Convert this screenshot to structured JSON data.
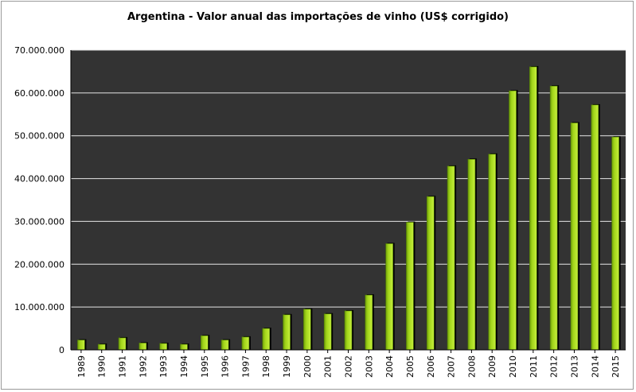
{
  "chart_data": {
    "type": "bar",
    "title": "Argentina - Valor anual das importações de vinho (US$ corrigido)",
    "xlabel": "",
    "ylabel": "",
    "ylim": [
      0,
      70000000
    ],
    "yticks": [
      0,
      10000000,
      20000000,
      30000000,
      40000000,
      50000000,
      60000000,
      70000000
    ],
    "ytick_labels": [
      "0",
      "10.000.000",
      "20.000.000",
      "30.000.000",
      "40.000.000",
      "50.000.000",
      "60.000.000",
      "70.000.000"
    ],
    "grid": true,
    "legend": "none",
    "categories": [
      "1989",
      "1990",
      "1991",
      "1992",
      "1993",
      "1994",
      "1995",
      "1996",
      "1997",
      "1998",
      "1999",
      "2000",
      "2001",
      "2002",
      "2003",
      "2004",
      "2005",
      "2006",
      "2007",
      "2008",
      "2009",
      "2010",
      "2011",
      "2012",
      "2013",
      "2014",
      "2015"
    ],
    "values": [
      2300000,
      1300000,
      2800000,
      1600000,
      1500000,
      1300000,
      3300000,
      2300000,
      3000000,
      5000000,
      8200000,
      9500000,
      8400000,
      9100000,
      12800000,
      24800000,
      29800000,
      35800000,
      42900000,
      44500000,
      45700000,
      60500000,
      66100000,
      61600000,
      53000000,
      57200000,
      49700000
    ],
    "colors": {
      "plot_background": "#333333",
      "gridline": "#e6e6e6",
      "bar": "#a2d51a",
      "bar_shadow": "#000000"
    }
  }
}
